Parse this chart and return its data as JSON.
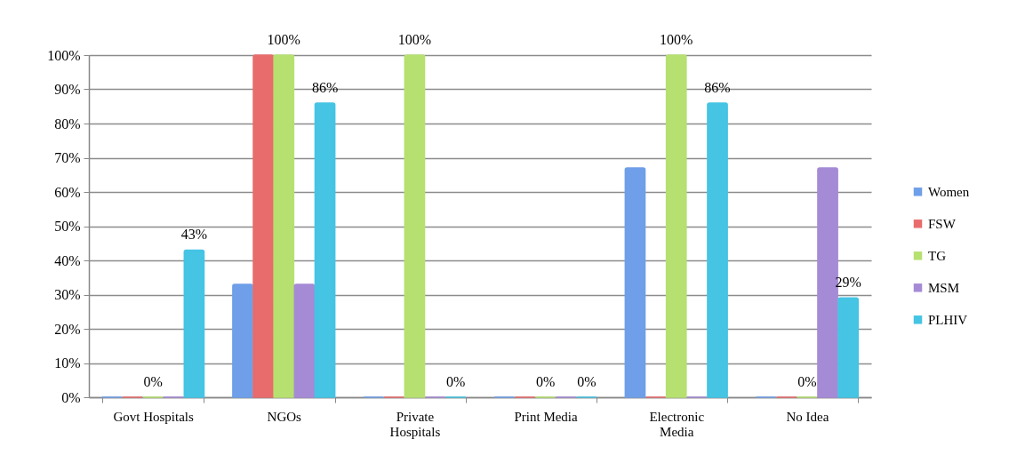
{
  "chart_data": {
    "type": "bar",
    "categories": [
      "Govt Hospitals",
      "NGOs",
      "Private Hospitals",
      "Print Media",
      "Electronic Media",
      "No Idea"
    ],
    "series": [
      {
        "name": "Women",
        "color": "#6f9fe8",
        "values": [
          0,
          33,
          0,
          0,
          67,
          0
        ]
      },
      {
        "name": "FSW",
        "color": "#e86c6c",
        "values": [
          0,
          100,
          0,
          0,
          0,
          0
        ]
      },
      {
        "name": "TG",
        "color": "#b6e070",
        "values": [
          0,
          100,
          100,
          0,
          100,
          0
        ],
        "value_labels": [
          "0%",
          "100%",
          "100%",
          "0%",
          "100%",
          "0%"
        ]
      },
      {
        "name": "MSM",
        "color": "#a58bd6",
        "values": [
          0,
          33,
          0,
          0,
          0,
          67
        ]
      },
      {
        "name": "PLHIV",
        "color": "#45c4e4",
        "values": [
          43,
          86,
          0,
          0,
          86,
          29
        ],
        "value_labels": [
          "43%",
          "86%",
          "0%",
          "0%",
          "86%",
          "29%"
        ]
      }
    ],
    "ylim": [
      0,
      100
    ],
    "yticks": [
      {
        "value": 0,
        "label": "0%"
      },
      {
        "value": 10,
        "label": "10%"
      },
      {
        "value": 20,
        "label": "20%"
      },
      {
        "value": 30,
        "label": "30%"
      },
      {
        "value": 40,
        "label": "40%"
      },
      {
        "value": 50,
        "label": "50%"
      },
      {
        "value": 60,
        "label": "60%"
      },
      {
        "value": 70,
        "label": "70%"
      },
      {
        "value": 80,
        "label": "80%"
      },
      {
        "value": 90,
        "label": "90%"
      },
      {
        "value": 100,
        "label": "100%"
      }
    ],
    "grid": "y",
    "legend": "right"
  }
}
